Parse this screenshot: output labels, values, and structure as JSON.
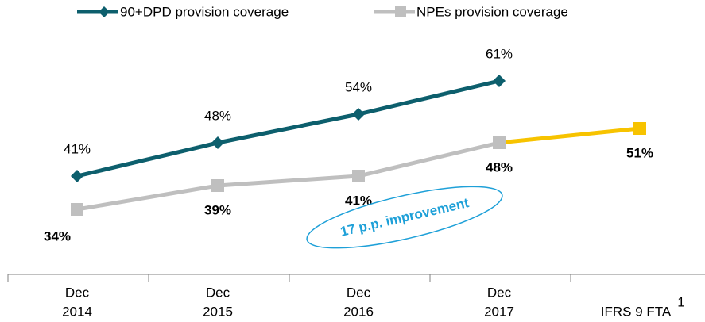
{
  "chart_data": {
    "type": "line",
    "categories": [
      [
        "Dec",
        "2014"
      ],
      [
        "Dec",
        "2015"
      ],
      [
        "Dec",
        "2016"
      ],
      [
        "Dec",
        "2017"
      ],
      [
        "IFRS 9 FTA"
      ]
    ],
    "category_footnote": "1",
    "ylim": [
      25,
      75
    ],
    "series": [
      {
        "name": "90+DPD provision coverage",
        "color": "#0d5f6d",
        "marker": "diamond",
        "values": [
          41,
          48,
          54,
          61,
          null
        ],
        "value_labels": [
          "41%",
          "48%",
          "54%",
          "61%",
          null
        ]
      },
      {
        "name": "NPEs provision coverage",
        "color": "#bfbfbf",
        "marker": "square",
        "last_segment_color": "#f7c300",
        "values": [
          34,
          39,
          41,
          48,
          51
        ],
        "value_labels": [
          "34%",
          "39%",
          "41%",
          "48%",
          "51%"
        ]
      }
    ],
    "annotation": {
      "text": "17 p.p. improvement",
      "color": "#1ea0d8"
    }
  }
}
